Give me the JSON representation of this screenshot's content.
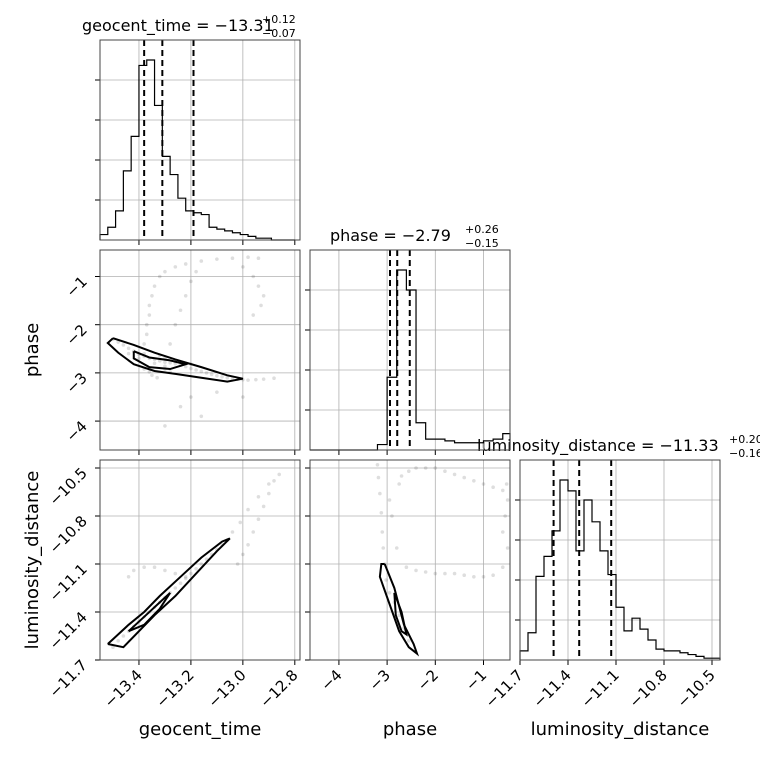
{
  "chart_data": {
    "type": "corner",
    "parameters": [
      "geocent_time",
      "phase",
      "luminosity_distance"
    ],
    "axis_labels": {
      "geocent_time": "geocent_time",
      "phase": "phase",
      "luminosity_distance": "luminosity_distance"
    },
    "ranges": {
      "geocent_time": [
        -13.55,
        -12.78
      ],
      "phase": [
        -4.6,
        -0.45
      ],
      "luminosity_distance": [
        -11.7,
        -10.45
      ]
    },
    "ticks": {
      "geocent_time": {
        "values": [
          -13.4,
          -13.2,
          -13.0,
          -12.8
        ],
        "labels": [
          "−13.4",
          "−13.2",
          "−13.0",
          "−12.8"
        ]
      },
      "phase": {
        "values": [
          -4,
          -3,
          -2,
          -1
        ],
        "labels": [
          "−4",
          "−3",
          "−2",
          "−1"
        ]
      },
      "luminosity_distance": {
        "values": [
          -11.7,
          -11.4,
          -11.1,
          -10.8,
          -10.5
        ],
        "labels": [
          "−11.7",
          "−11.4",
          "−11.1",
          "−10.8",
          "−10.5"
        ]
      }
    },
    "titles": {
      "geocent_time": {
        "main": "geocent_time = −13.31",
        "upper": "+0.12",
        "lower": "−0.07"
      },
      "phase": {
        "main": "phase = −2.79",
        "upper": "+0.26",
        "lower": "−0.15"
      },
      "luminosity_distance": {
        "main": "luminosity_distance = −11.33",
        "upper": "+0.20",
        "lower": "−0.16"
      }
    },
    "quantiles": {
      "geocent_time": [
        -13.38,
        -13.31,
        -13.19
      ],
      "phase": [
        -2.94,
        -2.79,
        -2.53
      ],
      "luminosity_distance": [
        -11.49,
        -11.33,
        -11.13
      ]
    },
    "histograms": {
      "geocent_time": {
        "edges": [
          -13.55,
          -13.52,
          -13.49,
          -13.46,
          -13.43,
          -13.4,
          -13.37,
          -13.34,
          -13.31,
          -13.28,
          -13.25,
          -13.22,
          -13.19,
          -13.16,
          -13.13,
          -13.1,
          -13.07,
          -13.04,
          -13.01,
          -12.98,
          -12.95,
          -12.92,
          -12.89,
          -12.86,
          -12.83,
          -12.8
        ],
        "counts": [
          3,
          7,
          16,
          38,
          57,
          96,
          99,
          74,
          46,
          36,
          23,
          16,
          15,
          14,
          7,
          6,
          5,
          4,
          3,
          2,
          1,
          1,
          0,
          0,
          0
        ]
      },
      "phase": {
        "edges": [
          -4.6,
          -4.4,
          -4.2,
          -4.0,
          -3.8,
          -3.6,
          -3.4,
          -3.2,
          -3.0,
          -2.8,
          -2.6,
          -2.4,
          -2.2,
          -2.0,
          -1.8,
          -1.6,
          -1.4,
          -1.2,
          -1.0,
          -0.8,
          -0.6,
          -0.45
        ],
        "counts": [
          0,
          0,
          0,
          0,
          0,
          0,
          0,
          3,
          40,
          99,
          88,
          15,
          6,
          6,
          5,
          4,
          4,
          4,
          5,
          6,
          9
        ]
      },
      "luminosity_distance": {
        "edges": [
          -11.7,
          -11.65,
          -11.6,
          -11.55,
          -11.5,
          -11.45,
          -11.4,
          -11.35,
          -11.3,
          -11.25,
          -11.2,
          -11.15,
          -11.1,
          -11.05,
          -11.0,
          -10.95,
          -10.9,
          -10.85,
          -10.8,
          -10.75,
          -10.7,
          -10.65,
          -10.6,
          -10.55,
          -10.5,
          -10.45
        ],
        "counts": [
          5,
          15,
          46,
          57,
          71,
          99,
          93,
          60,
          88,
          76,
          60,
          47,
          29,
          16,
          23,
          17,
          11,
          6,
          5,
          5,
          4,
          3,
          2,
          1,
          1
        ]
      }
    },
    "pairs": [
      {
        "x": "geocent_time",
        "y": "phase",
        "contours": [
          [
            [
              -13.5,
              -2.28
            ],
            [
              -13.42,
              -2.42
            ],
            [
              -13.34,
              -2.58
            ],
            [
              -13.26,
              -2.72
            ],
            [
              -13.16,
              -2.88
            ],
            [
              -13.06,
              -3.05
            ],
            [
              -13.0,
              -3.12
            ],
            [
              -13.06,
              -3.18
            ],
            [
              -13.16,
              -3.1
            ],
            [
              -13.26,
              -3.02
            ],
            [
              -13.34,
              -2.96
            ],
            [
              -13.42,
              -2.82
            ],
            [
              -13.48,
              -2.58
            ],
            [
              -13.52,
              -2.38
            ],
            [
              -13.5,
              -2.28
            ]
          ],
          [
            [
              -13.42,
              -2.55
            ],
            [
              -13.36,
              -2.68
            ],
            [
              -13.28,
              -2.74
            ],
            [
              -13.22,
              -2.82
            ],
            [
              -13.28,
              -2.92
            ],
            [
              -13.36,
              -2.88
            ],
            [
              -13.42,
              -2.7
            ],
            [
              -13.42,
              -2.55
            ]
          ]
        ],
        "points": [
          [
            -13.5,
            -2.3
          ],
          [
            -13.48,
            -2.36
          ],
          [
            -13.46,
            -2.42
          ],
          [
            -13.44,
            -2.49
          ],
          [
            -13.42,
            -2.55
          ],
          [
            -13.4,
            -2.62
          ],
          [
            -13.38,
            -2.66
          ],
          [
            -13.36,
            -2.7
          ],
          [
            -13.34,
            -2.72
          ],
          [
            -13.32,
            -2.75
          ],
          [
            -13.3,
            -2.78
          ],
          [
            -13.28,
            -2.79
          ],
          [
            -13.26,
            -2.81
          ],
          [
            -13.24,
            -2.84
          ],
          [
            -13.22,
            -2.87
          ],
          [
            -13.2,
            -2.91
          ],
          [
            -13.18,
            -2.94
          ],
          [
            -13.16,
            -2.97
          ],
          [
            -13.14,
            -3.0
          ],
          [
            -13.12,
            -3.03
          ],
          [
            -13.1,
            -3.06
          ],
          [
            -13.08,
            -3.08
          ],
          [
            -13.06,
            -3.1
          ],
          [
            -13.04,
            -3.12
          ],
          [
            -13.02,
            -3.13
          ],
          [
            -13.0,
            -3.14
          ],
          [
            -12.98,
            -3.15
          ],
          [
            -12.95,
            -3.14
          ],
          [
            -12.92,
            -3.13
          ],
          [
            -12.88,
            -3.11
          ],
          [
            -13.38,
            -2.92
          ],
          [
            -13.36,
            -2.98
          ],
          [
            -13.35,
            -3.05
          ],
          [
            -13.33,
            -3.1
          ],
          [
            -13.3,
            -2.92
          ],
          [
            -13.28,
            -2.98
          ],
          [
            -13.38,
            -2.6
          ],
          [
            -13.38,
            -2.4
          ],
          [
            -13.37,
            -2.2
          ],
          [
            -13.37,
            -2.0
          ],
          [
            -13.36,
            -1.8
          ],
          [
            -13.36,
            -1.6
          ],
          [
            -13.35,
            -1.4
          ],
          [
            -13.34,
            -1.2
          ],
          [
            -13.32,
            -1.0
          ],
          [
            -13.3,
            -0.9
          ],
          [
            -13.26,
            -0.8
          ],
          [
            -13.22,
            -0.74
          ],
          [
            -13.16,
            -0.68
          ],
          [
            -13.1,
            -0.64
          ],
          [
            -13.04,
            -0.62
          ],
          [
            -12.98,
            -0.6
          ],
          [
            -12.94,
            -0.62
          ],
          [
            -13.28,
            -2.4
          ],
          [
            -13.26,
            -2.0
          ],
          [
            -13.24,
            -1.7
          ],
          [
            -13.22,
            -1.4
          ],
          [
            -13.2,
            -1.1
          ],
          [
            -13.18,
            -0.9
          ],
          [
            -13.0,
            -0.8
          ],
          [
            -12.96,
            -1.0
          ],
          [
            -12.94,
            -1.2
          ],
          [
            -12.92,
            -1.4
          ],
          [
            -12.93,
            -1.6
          ],
          [
            -12.96,
            -1.8
          ],
          [
            -13.32,
            -2.64
          ],
          [
            -13.3,
            -2.7
          ],
          [
            -13.26,
            -2.76
          ],
          [
            -13.34,
            -2.8
          ],
          [
            -13.3,
            -2.86
          ],
          [
            -13.24,
            -2.78
          ],
          [
            -13.2,
            -2.82
          ],
          [
            -13.4,
            -2.7
          ],
          [
            -13.44,
            -2.6
          ],
          [
            -13.2,
            -3.5
          ],
          [
            -13.24,
            -3.7
          ],
          [
            -13.16,
            -3.9
          ],
          [
            -13.3,
            -4.1
          ],
          [
            -13.1,
            -3.4
          ],
          [
            -13.0,
            -3.5
          ]
        ]
      },
      {
        "x": "geocent_time",
        "y": "luminosity_distance",
        "contours": [
          [
            [
              -13.52,
              -11.6
            ],
            [
              -13.44,
              -11.48
            ],
            [
              -13.38,
              -11.4
            ],
            [
              -13.32,
              -11.3
            ],
            [
              -13.24,
              -11.18
            ],
            [
              -13.16,
              -11.06
            ],
            [
              -13.08,
              -10.96
            ],
            [
              -13.05,
              -10.94
            ],
            [
              -13.1,
              -11.02
            ],
            [
              -13.18,
              -11.16
            ],
            [
              -13.26,
              -11.3
            ],
            [
              -13.34,
              -11.42
            ],
            [
              -13.4,
              -11.52
            ],
            [
              -13.46,
              -11.62
            ],
            [
              -13.52,
              -11.6
            ]
          ],
          [
            [
              -13.44,
              -11.52
            ],
            [
              -13.38,
              -11.43
            ],
            [
              -13.32,
              -11.34
            ],
            [
              -13.28,
              -11.28
            ],
            [
              -13.32,
              -11.38
            ],
            [
              -13.38,
              -11.48
            ],
            [
              -13.44,
              -11.52
            ]
          ]
        ],
        "points": [
          [
            -13.5,
            -11.62
          ],
          [
            -13.48,
            -11.58
          ],
          [
            -13.46,
            -11.55
          ],
          [
            -13.44,
            -11.52
          ],
          [
            -13.42,
            -11.49
          ],
          [
            -13.4,
            -11.46
          ],
          [
            -13.38,
            -11.43
          ],
          [
            -13.36,
            -11.4
          ],
          [
            -13.34,
            -11.37
          ],
          [
            -13.32,
            -11.34
          ],
          [
            -13.3,
            -11.31
          ],
          [
            -13.28,
            -11.28
          ],
          [
            -13.26,
            -11.25
          ],
          [
            -13.24,
            -11.22
          ],
          [
            -13.22,
            -11.19
          ],
          [
            -13.2,
            -11.16
          ],
          [
            -13.18,
            -11.13
          ],
          [
            -13.16,
            -11.1
          ],
          [
            -13.14,
            -11.07
          ],
          [
            -13.12,
            -11.04
          ],
          [
            -13.1,
            -11.01
          ],
          [
            -13.08,
            -10.98
          ],
          [
            -13.06,
            -10.95
          ],
          [
            -13.04,
            -10.9
          ],
          [
            -13.01,
            -10.84
          ],
          [
            -12.98,
            -10.76
          ],
          [
            -12.94,
            -10.68
          ],
          [
            -12.9,
            -10.6
          ],
          [
            -12.86,
            -10.54
          ],
          [
            -13.02,
            -11.1
          ],
          [
            -13.0,
            -11.04
          ],
          [
            -12.98,
            -10.98
          ],
          [
            -12.96,
            -10.9
          ],
          [
            -12.94,
            -10.82
          ],
          [
            -12.92,
            -10.74
          ],
          [
            -12.9,
            -10.66
          ],
          [
            -12.88,
            -10.58
          ],
          [
            -13.42,
            -11.14
          ],
          [
            -13.38,
            -11.12
          ],
          [
            -13.34,
            -11.12
          ],
          [
            -13.3,
            -11.14
          ],
          [
            -13.26,
            -11.16
          ],
          [
            -13.22,
            -11.18
          ],
          [
            -13.44,
            -11.18
          ]
        ]
      },
      {
        "x": "phase",
        "y": "luminosity_distance",
        "contours": [
          [
            [
              -3.05,
              -11.1
            ],
            [
              -2.85,
              -11.25
            ],
            [
              -2.65,
              -11.48
            ],
            [
              -2.45,
              -11.6
            ],
            [
              -2.38,
              -11.66
            ],
            [
              -2.55,
              -11.62
            ],
            [
              -2.75,
              -11.52
            ],
            [
              -2.95,
              -11.35
            ],
            [
              -3.15,
              -11.18
            ],
            [
              -3.12,
              -11.1
            ],
            [
              -3.05,
              -11.1
            ]
          ],
          [
            [
              -2.85,
              -11.28
            ],
            [
              -2.7,
              -11.4
            ],
            [
              -2.6,
              -11.54
            ],
            [
              -2.7,
              -11.52
            ],
            [
              -2.82,
              -11.42
            ],
            [
              -2.85,
              -11.28
            ]
          ]
        ],
        "points": [
          [
            -3.2,
            -10.48
          ],
          [
            -3.18,
            -10.56
          ],
          [
            -3.15,
            -10.66
          ],
          [
            -3.12,
            -10.78
          ],
          [
            -3.1,
            -10.9
          ],
          [
            -3.08,
            -11.0
          ],
          [
            -3.05,
            -11.1
          ],
          [
            -3.02,
            -11.2
          ],
          [
            -2.95,
            -11.28
          ],
          [
            -2.85,
            -11.34
          ],
          [
            -2.75,
            -11.42
          ],
          [
            -2.65,
            -11.5
          ],
          [
            -2.55,
            -11.58
          ],
          [
            -2.75,
            -10.6
          ],
          [
            -2.7,
            -10.55
          ],
          [
            -2.55,
            -10.52
          ],
          [
            -2.4,
            -10.5
          ],
          [
            -2.2,
            -10.5
          ],
          [
            -2.0,
            -10.5
          ],
          [
            -1.8,
            -10.52
          ],
          [
            -1.6,
            -10.54
          ],
          [
            -1.4,
            -10.56
          ],
          [
            -1.2,
            -10.58
          ],
          [
            -1.0,
            -10.6
          ],
          [
            -0.8,
            -10.62
          ],
          [
            -0.6,
            -10.64
          ],
          [
            -2.6,
            -11.12
          ],
          [
            -2.4,
            -11.14
          ],
          [
            -2.2,
            -11.15
          ],
          [
            -2.0,
            -11.16
          ],
          [
            -1.8,
            -11.16
          ],
          [
            -1.6,
            -11.16
          ],
          [
            -1.4,
            -11.17
          ],
          [
            -1.2,
            -11.18
          ],
          [
            -1.0,
            -11.18
          ],
          [
            -0.8,
            -11.17
          ],
          [
            -0.6,
            -11.12
          ],
          [
            -0.5,
            -11.0
          ],
          [
            -0.55,
            -10.8
          ],
          [
            -0.6,
            -10.9
          ],
          [
            -0.5,
            -10.7
          ],
          [
            -0.52,
            -10.6
          ],
          [
            -2.8,
            -11.0
          ],
          [
            -2.9,
            -10.8
          ],
          [
            -2.95,
            -10.7
          ]
        ]
      }
    ]
  }
}
